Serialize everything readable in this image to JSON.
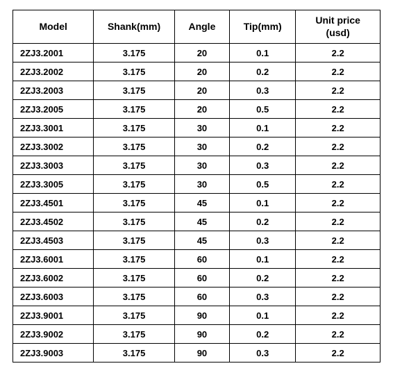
{
  "table": {
    "columns": [
      {
        "key": "model",
        "label": "Model"
      },
      {
        "key": "shank",
        "label": "Shank(mm)"
      },
      {
        "key": "angle",
        "label": "Angle"
      },
      {
        "key": "tip",
        "label": "Tip(mm)"
      },
      {
        "key": "price",
        "label": "Unit price\n(usd)"
      }
    ],
    "rows": [
      {
        "model": "2ZJ3.2001",
        "shank": "3.175",
        "angle": "20",
        "tip": "0.1",
        "price": "2.2"
      },
      {
        "model": "2ZJ3.2002",
        "shank": "3.175",
        "angle": "20",
        "tip": "0.2",
        "price": "2.2"
      },
      {
        "model": "2ZJ3.2003",
        "shank": "3.175",
        "angle": "20",
        "tip": "0.3",
        "price": "2.2"
      },
      {
        "model": "2ZJ3.2005",
        "shank": "3.175",
        "angle": "20",
        "tip": "0.5",
        "price": "2.2"
      },
      {
        "model": "2ZJ3.3001",
        "shank": "3.175",
        "angle": "30",
        "tip": "0.1",
        "price": "2.2"
      },
      {
        "model": "2ZJ3.3002",
        "shank": "3.175",
        "angle": "30",
        "tip": "0.2",
        "price": "2.2"
      },
      {
        "model": "2ZJ3.3003",
        "shank": "3.175",
        "angle": "30",
        "tip": "0.3",
        "price": "2.2"
      },
      {
        "model": "2ZJ3.3005",
        "shank": "3.175",
        "angle": "30",
        "tip": "0.5",
        "price": "2.2"
      },
      {
        "model": "2ZJ3.4501",
        "shank": "3.175",
        "angle": "45",
        "tip": "0.1",
        "price": "2.2"
      },
      {
        "model": "2ZJ3.4502",
        "shank": "3.175",
        "angle": "45",
        "tip": "0.2",
        "price": "2.2"
      },
      {
        "model": "2ZJ3.4503",
        "shank": "3.175",
        "angle": "45",
        "tip": "0.3",
        "price": "2.2"
      },
      {
        "model": "2ZJ3.6001",
        "shank": "3.175",
        "angle": "60",
        "tip": "0.1",
        "price": "2.2"
      },
      {
        "model": "2ZJ3.6002",
        "shank": "3.175",
        "angle": "60",
        "tip": "0.2",
        "price": "2.2"
      },
      {
        "model": "2ZJ3.6003",
        "shank": "3.175",
        "angle": "60",
        "tip": "0.3",
        "price": "2.2"
      },
      {
        "model": "2ZJ3.9001",
        "shank": "3.175",
        "angle": "90",
        "tip": "0.1",
        "price": "2.2"
      },
      {
        "model": "2ZJ3.9002",
        "shank": "3.175",
        "angle": "90",
        "tip": "0.2",
        "price": "2.2"
      },
      {
        "model": "2ZJ3.9003",
        "shank": "3.175",
        "angle": "90",
        "tip": "0.3",
        "price": "2.2"
      }
    ],
    "style": {
      "border_color": "#000000",
      "background_color": "#ffffff",
      "header_fontsize_pt": 14,
      "cell_fontsize_pt": 13,
      "font_weight": 700,
      "column_widths_pct": [
        22,
        22,
        15,
        18,
        23
      ]
    }
  }
}
